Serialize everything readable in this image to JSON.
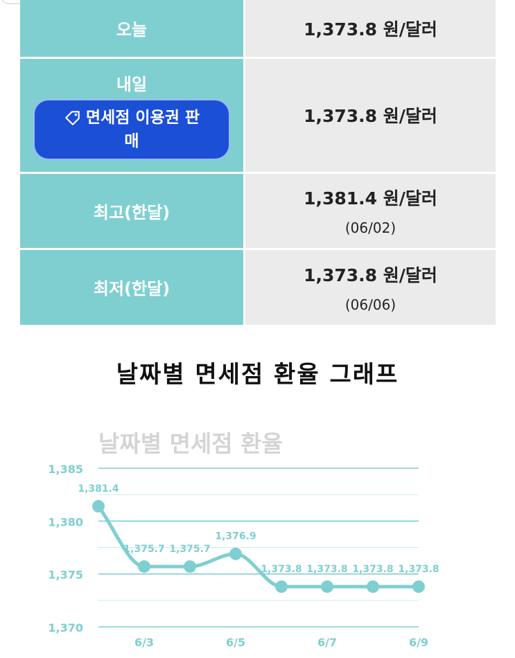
{
  "table": {
    "rows": [
      {
        "label": "오늘",
        "value": "1,373.8 원/달러",
        "date": ""
      },
      {
        "label": "내일",
        "value": "1,373.8 원/달러",
        "date": "",
        "button": [
          "면세점 이용권 판",
          "매"
        ]
      },
      {
        "label": "최고(한달)",
        "value": "1,381.4 원/달러",
        "date": "(06/02)"
      },
      {
        "label": "최저(한달)",
        "value": "1,373.8 원/달러",
        "date": "(06/06)"
      }
    ]
  },
  "section_title": "날짜별 면세점 환율 그래프",
  "colors": {
    "teal": "#7fcfd1",
    "button_blue": "#1a4fd6",
    "cell_gray": "#ebebeb"
  },
  "chart_data": {
    "type": "line",
    "title": "날짜별 면세점 환율",
    "xlabel": "",
    "ylabel": "",
    "x": [
      "6/2",
      "6/3",
      "6/4",
      "6/5",
      "6/6",
      "6/7",
      "6/8",
      "6/9"
    ],
    "x_tick_labels": [
      "6/3",
      "6/5",
      "6/7",
      "6/9"
    ],
    "values": [
      1381.4,
      1375.7,
      1375.7,
      1376.9,
      1373.8,
      1373.8,
      1373.8,
      1373.8
    ],
    "data_labels": [
      "1,381.4",
      "1,375.7",
      "1,375.7",
      "1,376.9",
      "1,373.8",
      "1,373.8",
      "1,373.8",
      "1,373.8"
    ],
    "y_ticks": [
      1370,
      1375,
      1380,
      1385
    ],
    "y_tick_labels": [
      "1,370",
      "1,375",
      "1,380",
      "1,385"
    ],
    "ylim": [
      1370,
      1385
    ],
    "grid": true,
    "smooth": true,
    "color": "#7fcfd1"
  }
}
